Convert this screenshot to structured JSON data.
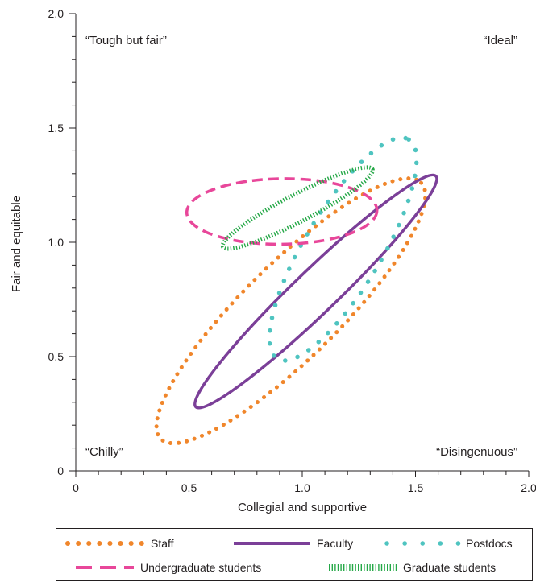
{
  "chart_data": {
    "type": "ellipse-scatter",
    "xlabel": "Collegial and supportive",
    "ylabel": "Fair and equitable",
    "xlim": [
      0,
      2.0
    ],
    "ylim": [
      0,
      2.0
    ],
    "x_ticks": [
      {
        "value": 0,
        "label": "0"
      },
      {
        "value": 0.5,
        "label": "0.5"
      },
      {
        "value": 1.0,
        "label": "1.0"
      },
      {
        "value": 1.5,
        "label": "1.5"
      },
      {
        "value": 2.0,
        "label": "2.0"
      }
    ],
    "y_ticks": [
      {
        "value": 0,
        "label": "0"
      },
      {
        "value": 0.5,
        "label": "0.5"
      },
      {
        "value": 1.0,
        "label": "1.0"
      },
      {
        "value": 1.5,
        "label": "1.5"
      },
      {
        "value": 2.0,
        "label": "2.0"
      }
    ],
    "minor_tick_step": 0.1,
    "quadrant_labels": {
      "top_left": "“Tough but fair”",
      "top_right": "“Ideal”",
      "bottom_left": "“Chilly”",
      "bottom_right": "“Disingenuous”"
    },
    "series": [
      {
        "name": "Staff",
        "style": "dotted",
        "color": "#f0862b",
        "ellipse": {
          "center": [
            0.95,
            0.7
          ],
          "major_axis_ends": [
            [
              0.37,
              0.14
            ],
            [
              1.52,
              1.26
            ]
          ],
          "minor_semi_axis": 0.21
        }
      },
      {
        "name": "Faculty",
        "style": "solid",
        "color": "#7b3f98",
        "ellipse": {
          "center": [
            1.06,
            0.785
          ],
          "major_axis_ends": [
            [
              0.53,
              0.28
            ],
            [
              1.59,
              1.29
            ]
          ],
          "minor_semi_axis": 0.095
        }
      },
      {
        "name": "Postdocs",
        "style": "sparse-dotted",
        "color": "#4fc4c0",
        "ellipse": {
          "center": [
            1.18,
            0.97
          ],
          "major_axis_ends": [
            [
              0.89,
              0.49
            ],
            [
              1.47,
              1.45
            ]
          ],
          "minor_semi_axis": 0.17
        }
      },
      {
        "name": "Undergraduate students",
        "style": "dashed",
        "color": "#e8479a",
        "ellipse": {
          "center": [
            0.91,
            1.135
          ],
          "major_axis_ends": [
            [
              0.49,
              1.13
            ],
            [
              1.33,
              1.14
            ]
          ],
          "minor_semi_axis": 0.145
        }
      },
      {
        "name": "Graduate students",
        "style": "hatched",
        "color": "#25a847",
        "ellipse": {
          "center": [
            0.98,
            1.15
          ],
          "major_axis_ends": [
            [
              0.65,
              0.98
            ],
            [
              1.31,
              1.32
            ]
          ],
          "minor_semi_axis": 0.06
        }
      }
    ],
    "legend": {
      "placement": "bottom",
      "rows": [
        [
          "Staff",
          "Faculty",
          "Postdocs"
        ],
        [
          "Undergraduate students",
          "Graduate students"
        ]
      ]
    }
  }
}
